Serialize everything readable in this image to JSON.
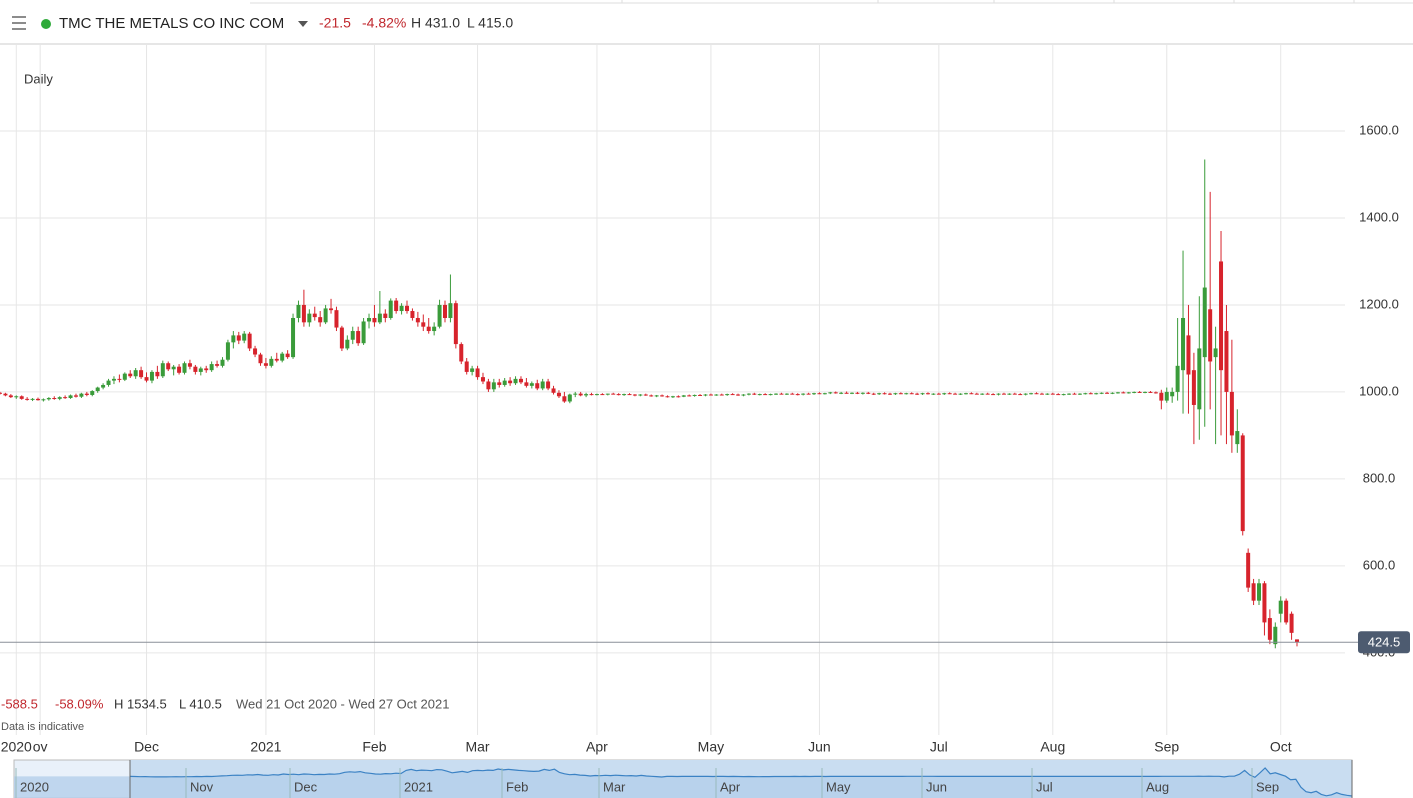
{
  "header": {
    "title": "TMC THE METALS CO INC COM",
    "change": "-21.5",
    "change_pct": "-4.82%",
    "high": "H 431.0",
    "low": "L 415.0"
  },
  "footer": {
    "change": "-588.5",
    "change_pct": "-58.09%",
    "high": "H 1534.5",
    "low": "L 410.5",
    "range": "Wed 21 Oct 2020 - Wed 27 Oct 2021",
    "note": "Data is indicative"
  },
  "chart_data": {
    "type": "candlestick",
    "subtitle": "Daily",
    "up_color": "#3a9b3a",
    "down_color": "#d7232c",
    "grid": true,
    "ylim": [
      310,
      1800
    ],
    "yticks": [
      {
        "value": 400,
        "label": "400.0"
      },
      {
        "value": 600,
        "label": "600.0"
      },
      {
        "value": 800,
        "label": "800.0"
      },
      {
        "value": 1000,
        "label": "1000.0"
      },
      {
        "value": 1200,
        "label": "1200.0"
      },
      {
        "value": 1400,
        "label": "1400.0"
      },
      {
        "value": 1600,
        "label": "1600.0"
      }
    ],
    "xticks": [
      {
        "value": 3,
        "label": "2020"
      },
      {
        "value": 7.4,
        "label": "ov"
      },
      {
        "value": 27,
        "label": "Dec"
      },
      {
        "value": 49,
        "label": "2021"
      },
      {
        "value": 69,
        "label": "Feb"
      },
      {
        "value": 88,
        "label": "Mar"
      },
      {
        "value": 110,
        "label": "Apr"
      },
      {
        "value": 131,
        "label": "May"
      },
      {
        "value": 151,
        "label": "Jun"
      },
      {
        "value": 173,
        "label": "Jul"
      },
      {
        "value": 194,
        "label": "Aug"
      },
      {
        "value": 215,
        "label": "Sep"
      },
      {
        "value": 236,
        "label": "Oct"
      }
    ],
    "navigator_labels": [
      "2020",
      "Nov",
      "Dec",
      "2021",
      "Feb",
      "Mar",
      "Apr",
      "May",
      "Jun",
      "Jul",
      "Aug",
      "Sep"
    ],
    "ohlc": [
      [
        998,
        1000,
        994,
        996
      ],
      [
        996,
        998,
        990,
        992
      ],
      [
        992,
        995,
        986,
        988
      ],
      [
        988,
        992,
        984,
        990
      ],
      [
        990,
        992,
        982,
        984
      ],
      [
        984,
        988,
        980,
        982
      ],
      [
        982,
        986,
        979,
        984
      ],
      [
        984,
        987,
        980,
        981
      ],
      [
        981,
        985,
        978,
        983
      ],
      [
        983,
        988,
        980,
        986
      ],
      [
        986,
        990,
        982,
        984
      ],
      [
        984,
        990,
        981,
        988
      ],
      [
        988,
        992,
        984,
        986
      ],
      [
        986,
        994,
        984,
        992
      ],
      [
        992,
        996,
        987,
        989
      ],
      [
        989,
        998,
        986,
        996
      ],
      [
        996,
        1000,
        990,
        993
      ],
      [
        993,
        1004,
        990,
        1002
      ],
      [
        1002,
        1012,
        998,
        1010
      ],
      [
        1010,
        1020,
        1006,
        1016
      ],
      [
        1016,
        1030,
        1012,
        1026
      ],
      [
        1026,
        1036,
        1018,
        1030
      ],
      [
        1030,
        1040,
        1022,
        1028
      ],
      [
        1028,
        1045,
        1025,
        1042
      ],
      [
        1042,
        1050,
        1032,
        1036
      ],
      [
        1036,
        1055,
        1030,
        1050
      ],
      [
        1050,
        1058,
        1030,
        1034
      ],
      [
        1034,
        1045,
        1022,
        1026
      ],
      [
        1026,
        1050,
        1020,
        1046
      ],
      [
        1046,
        1060,
        1030,
        1036
      ],
      [
        1036,
        1072,
        1032,
        1066
      ],
      [
        1066,
        1070,
        1048,
        1052
      ],
      [
        1052,
        1062,
        1038,
        1058
      ],
      [
        1058,
        1064,
        1040,
        1044
      ],
      [
        1044,
        1070,
        1040,
        1066
      ],
      [
        1066,
        1074,
        1052,
        1058
      ],
      [
        1058,
        1062,
        1040,
        1046
      ],
      [
        1046,
        1058,
        1038,
        1054
      ],
      [
        1054,
        1060,
        1044,
        1050
      ],
      [
        1050,
        1070,
        1046,
        1064
      ],
      [
        1064,
        1072,
        1056,
        1060
      ],
      [
        1060,
        1080,
        1056,
        1074
      ],
      [
        1074,
        1120,
        1070,
        1114
      ],
      [
        1114,
        1140,
        1100,
        1130
      ],
      [
        1130,
        1138,
        1110,
        1118
      ],
      [
        1118,
        1140,
        1112,
        1134
      ],
      [
        1134,
        1138,
        1094,
        1100
      ],
      [
        1100,
        1106,
        1080,
        1086
      ],
      [
        1086,
        1090,
        1060,
        1066
      ],
      [
        1066,
        1078,
        1054,
        1060
      ],
      [
        1060,
        1082,
        1056,
        1076
      ],
      [
        1076,
        1090,
        1068,
        1072
      ],
      [
        1072,
        1092,
        1068,
        1088
      ],
      [
        1088,
        1096,
        1076,
        1080
      ],
      [
        1080,
        1180,
        1076,
        1170
      ],
      [
        1170,
        1210,
        1160,
        1200
      ],
      [
        1200,
        1235,
        1150,
        1160
      ],
      [
        1160,
        1190,
        1150,
        1180
      ],
      [
        1180,
        1196,
        1164,
        1172
      ],
      [
        1172,
        1186,
        1150,
        1160
      ],
      [
        1160,
        1200,
        1156,
        1192
      ],
      [
        1192,
        1214,
        1180,
        1188
      ],
      [
        1188,
        1196,
        1140,
        1148
      ],
      [
        1148,
        1152,
        1094,
        1100
      ],
      [
        1100,
        1130,
        1096,
        1120
      ],
      [
        1120,
        1150,
        1110,
        1140
      ],
      [
        1140,
        1150,
        1106,
        1112
      ],
      [
        1112,
        1170,
        1108,
        1162
      ],
      [
        1162,
        1180,
        1146,
        1170
      ],
      [
        1170,
        1200,
        1150,
        1160
      ],
      [
        1160,
        1232,
        1156,
        1180
      ],
      [
        1180,
        1190,
        1160,
        1170
      ],
      [
        1170,
        1215,
        1166,
        1210
      ],
      [
        1210,
        1216,
        1180,
        1186
      ],
      [
        1186,
        1204,
        1178,
        1198
      ],
      [
        1198,
        1210,
        1180,
        1186
      ],
      [
        1186,
        1192,
        1164,
        1170
      ],
      [
        1170,
        1184,
        1150,
        1160
      ],
      [
        1160,
        1178,
        1140,
        1150
      ],
      [
        1150,
        1170,
        1134,
        1140
      ],
      [
        1140,
        1160,
        1130,
        1150
      ],
      [
        1150,
        1212,
        1146,
        1200
      ],
      [
        1200,
        1210,
        1160,
        1170
      ],
      [
        1170,
        1270,
        1160,
        1204
      ],
      [
        1204,
        1210,
        1100,
        1110
      ],
      [
        1110,
        1114,
        1064,
        1070
      ],
      [
        1070,
        1078,
        1040,
        1046
      ],
      [
        1046,
        1060,
        1038,
        1054
      ],
      [
        1054,
        1060,
        1028,
        1034
      ],
      [
        1034,
        1044,
        1018,
        1024
      ],
      [
        1024,
        1030,
        1000,
        1006
      ],
      [
        1006,
        1030,
        1000,
        1022
      ],
      [
        1022,
        1030,
        1010,
        1016
      ],
      [
        1016,
        1032,
        1012,
        1026
      ],
      [
        1026,
        1034,
        1014,
        1020
      ],
      [
        1020,
        1036,
        1016,
        1030
      ],
      [
        1030,
        1036,
        1018,
        1022
      ],
      [
        1022,
        1032,
        1010,
        1014
      ],
      [
        1014,
        1024,
        1008,
        1020
      ],
      [
        1020,
        1028,
        1004,
        1008
      ],
      [
        1008,
        1030,
        1004,
        1024
      ],
      [
        1024,
        1030,
        1004,
        1008
      ],
      [
        1008,
        1014,
        994,
        998
      ],
      [
        998,
        1004,
        986,
        990
      ],
      [
        990,
        1000,
        975,
        978
      ],
      [
        978,
        996,
        974,
        994
      ],
      [
        994,
        1000,
        988,
        996
      ],
      [
        996,
        1000,
        990,
        992
      ],
      [
        992,
        998,
        988,
        995
      ],
      [
        995,
        998,
        992,
        994
      ],
      [
        994,
        996,
        992,
        995
      ],
      [
        995,
        997,
        993,
        994
      ],
      [
        994,
        996,
        992,
        996
      ],
      [
        996,
        998,
        994,
        995
      ],
      [
        995,
        997,
        992,
        993
      ],
      [
        993,
        996,
        991,
        995
      ],
      [
        995,
        997,
        993,
        994
      ],
      [
        994,
        995,
        990,
        992
      ],
      [
        992,
        995,
        990,
        994
      ],
      [
        994,
        996,
        991,
        992
      ],
      [
        992,
        994,
        989,
        990
      ],
      [
        990,
        993,
        988,
        992
      ],
      [
        992,
        994,
        989,
        990
      ],
      [
        990,
        992,
        987,
        988
      ],
      [
        988,
        991,
        986,
        990
      ],
      [
        990,
        992,
        987,
        989
      ],
      [
        989,
        993,
        988,
        992
      ],
      [
        992,
        994,
        990,
        991
      ],
      [
        991,
        994,
        989,
        993
      ],
      [
        993,
        995,
        991,
        992
      ],
      [
        992,
        995,
        990,
        994
      ],
      [
        994,
        996,
        992,
        993
      ],
      [
        993,
        995,
        991,
        994
      ],
      [
        994,
        996,
        992,
        993
      ],
      [
        993,
        996,
        991,
        995
      ],
      [
        995,
        997,
        993,
        994
      ],
      [
        994,
        996,
        991,
        992
      ],
      [
        992,
        995,
        990,
        994
      ],
      [
        994,
        997,
        992,
        996
      ],
      [
        996,
        998,
        993,
        994
      ],
      [
        994,
        996,
        992,
        995
      ],
      [
        995,
        997,
        993,
        994
      ],
      [
        994,
        996,
        992,
        995
      ],
      [
        995,
        997,
        993,
        996
      ],
      [
        996,
        998,
        994,
        995
      ],
      [
        995,
        997,
        993,
        996
      ],
      [
        996,
        998,
        994,
        995
      ],
      [
        995,
        997,
        992,
        994
      ],
      [
        994,
        997,
        992,
        996
      ],
      [
        996,
        998,
        994,
        995
      ],
      [
        995,
        998,
        993,
        997
      ],
      [
        997,
        999,
        995,
        996
      ],
      [
        996,
        998,
        994,
        997
      ],
      [
        997,
        1000,
        995,
        999
      ],
      [
        999,
        1001,
        996,
        997
      ],
      [
        997,
        1000,
        995,
        998
      ],
      [
        998,
        1001,
        996,
        997
      ],
      [
        997,
        999,
        995,
        998
      ],
      [
        998,
        1000,
        995,
        996
      ],
      [
        996,
        999,
        994,
        998
      ],
      [
        998,
        1000,
        995,
        996
      ],
      [
        996,
        998,
        993,
        995
      ],
      [
        995,
        998,
        993,
        997
      ],
      [
        997,
        999,
        994,
        996
      ],
      [
        996,
        998,
        993,
        995
      ],
      [
        995,
        998,
        993,
        997
      ],
      [
        997,
        999,
        995,
        996
      ],
      [
        996,
        998,
        994,
        997
      ],
      [
        997,
        999,
        995,
        996
      ],
      [
        996,
        998,
        993,
        995
      ],
      [
        995,
        998,
        993,
        997
      ],
      [
        997,
        999,
        994,
        995
      ],
      [
        995,
        997,
        993,
        996
      ],
      [
        996,
        998,
        994,
        995
      ],
      [
        995,
        998,
        993,
        997
      ],
      [
        997,
        999,
        995,
        996
      ],
      [
        996,
        998,
        994,
        995
      ],
      [
        995,
        997,
        993,
        996
      ],
      [
        996,
        998,
        994,
        997
      ],
      [
        997,
        999,
        995,
        996
      ],
      [
        996,
        998,
        994,
        995
      ],
      [
        995,
        997,
        993,
        996
      ],
      [
        996,
        998,
        994,
        995
      ],
      [
        995,
        997,
        993,
        994
      ],
      [
        994,
        997,
        992,
        996
      ],
      [
        996,
        998,
        994,
        995
      ],
      [
        995,
        997,
        993,
        996
      ],
      [
        996,
        998,
        994,
        995
      ],
      [
        995,
        997,
        993,
        994
      ],
      [
        994,
        997,
        992,
        996
      ],
      [
        996,
        998,
        994,
        997
      ],
      [
        997,
        999,
        995,
        996
      ],
      [
        996,
        998,
        994,
        995
      ],
      [
        995,
        997,
        993,
        996
      ],
      [
        996,
        998,
        994,
        995
      ],
      [
        995,
        997,
        993,
        994
      ],
      [
        994,
        996,
        992,
        995
      ],
      [
        995,
        997,
        993,
        996
      ],
      [
        996,
        998,
        994,
        995
      ],
      [
        995,
        997,
        993,
        996
      ],
      [
        996,
        998,
        994,
        997
      ],
      [
        997,
        999,
        995,
        996
      ],
      [
        996,
        998,
        994,
        997
      ],
      [
        997,
        999,
        995,
        998
      ],
      [
        998,
        1000,
        996,
        997
      ],
      [
        997,
        999,
        995,
        998
      ],
      [
        998,
        1000,
        996,
        999
      ],
      [
        999,
        1001,
        997,
        998
      ],
      [
        998,
        1000,
        996,
        999
      ],
      [
        999,
        1001,
        997,
        1000
      ],
      [
        1000,
        1002,
        998,
        999
      ],
      [
        999,
        1001,
        997,
        1000
      ],
      [
        1000,
        1002,
        998,
        999
      ],
      [
        999,
        1001,
        996,
        998
      ],
      [
        998,
        1005,
        960,
        980
      ],
      [
        980,
        1010,
        975,
        1000
      ],
      [
        990,
        1010,
        975,
        1000
      ],
      [
        1000,
        1170,
        980,
        1060
      ],
      [
        1050,
        1325,
        950,
        1170
      ],
      [
        1130,
        1200,
        950,
        1040
      ],
      [
        1050,
        1090,
        880,
        970
      ],
      [
        960,
        1220,
        890,
        1100
      ],
      [
        1080,
        1534.5,
        920,
        1240
      ],
      [
        1190,
        1460,
        960,
        1070
      ],
      [
        1080,
        1150,
        880,
        1100
      ],
      [
        1300,
        1370,
        900,
        1050
      ],
      [
        1140,
        1200,
        880,
        1000
      ],
      [
        1000,
        1120,
        860,
        900
      ],
      [
        880,
        960,
        860,
        910
      ],
      [
        900,
        905,
        670,
        680
      ],
      [
        630,
        640,
        540,
        550
      ],
      [
        560,
        570,
        510,
        520
      ],
      [
        520,
        570,
        510,
        560
      ],
      [
        560,
        565,
        440,
        470
      ],
      [
        480,
        500,
        420,
        430
      ],
      [
        420,
        470,
        410.5,
        460
      ],
      [
        490,
        530,
        470,
        520
      ],
      [
        520,
        525,
        465,
        470
      ],
      [
        490,
        495,
        430,
        446
      ],
      [
        431,
        431,
        415,
        424.5
      ]
    ]
  }
}
